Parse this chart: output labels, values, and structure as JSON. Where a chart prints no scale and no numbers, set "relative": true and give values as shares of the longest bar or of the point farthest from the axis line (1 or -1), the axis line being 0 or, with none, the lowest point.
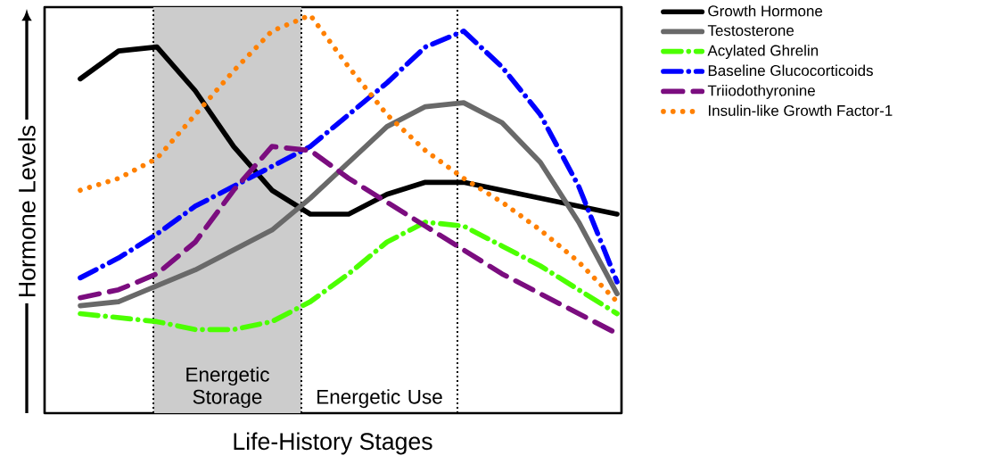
{
  "chart_data": {
    "type": "line",
    "relative": true,
    "xlabel": "Life-History Stages",
    "ylabel": "Hormone Levels",
    "legend": "right",
    "marker": "none",
    "categories": [
      null,
      null,
      null,
      null,
      null,
      null,
      null,
      null,
      null,
      null,
      null,
      null,
      null,
      null,
      null
    ],
    "series": [
      {
        "name": "Growth Hormone",
        "color": "#000000",
        "line_style": "solid",
        "values": [
          0.84,
          0.91,
          0.92,
          0.81,
          0.67,
          0.56,
          0.5,
          0.5,
          0.55,
          0.58,
          0.58,
          0.56,
          0.54,
          0.52,
          0.5
        ]
      },
      {
        "name": "Testosterone",
        "color": "#696969",
        "line_style": "solid",
        "values": [
          0.27,
          0.28,
          0.32,
          0.36,
          0.41,
          0.46,
          0.54,
          0.63,
          0.72,
          0.77,
          0.78,
          0.73,
          0.63,
          0.48,
          0.3
        ]
      },
      {
        "name": "Acylated Ghrelin",
        "color": "#4cff00",
        "line_style": "dashdot",
        "values": [
          0.25,
          0.24,
          0.23,
          0.21,
          0.21,
          0.23,
          0.28,
          0.35,
          0.43,
          0.48,
          0.47,
          0.42,
          0.37,
          0.31,
          0.25
        ]
      },
      {
        "name": "Baseline Glucocorticoids",
        "color": "#0000ff",
        "line_style": "dashdot",
        "values": [
          0.34,
          0.39,
          0.45,
          0.52,
          0.57,
          0.62,
          0.67,
          0.75,
          0.83,
          0.92,
          0.96,
          0.87,
          0.75,
          0.57,
          0.33
        ]
      },
      {
        "name": "Triiodothyronine",
        "color": "#7b0d7f",
        "line_style": "dashed",
        "values": [
          0.29,
          0.31,
          0.35,
          0.43,
          0.56,
          0.67,
          0.66,
          0.59,
          0.53,
          0.47,
          0.41,
          0.35,
          0.3,
          0.25,
          0.2
        ]
      },
      {
        "name": "Insulin-like Growth Factor-1",
        "color": "#ff8000",
        "line_style": "dotted",
        "values": [
          0.56,
          0.59,
          0.64,
          0.75,
          0.86,
          0.96,
          1.0,
          0.87,
          0.75,
          0.66,
          0.59,
          0.53,
          0.46,
          0.38,
          0.28
        ]
      }
    ],
    "annotations": [
      "Energetic Storage",
      "Energetic Use"
    ]
  }
}
